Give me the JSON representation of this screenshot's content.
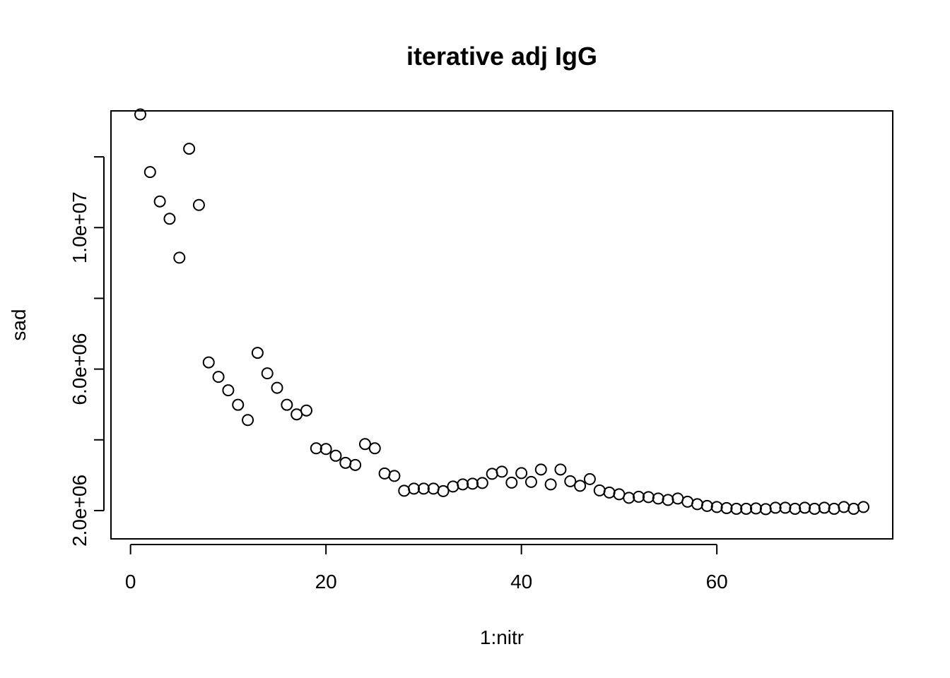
{
  "chart_data": {
    "type": "scatter",
    "title": "iterative adj IgG",
    "xlabel": "1:nitr",
    "ylabel": "sad",
    "xlim": [
      -2,
      78
    ],
    "ylim": [
      1200000,
      13300000
    ],
    "x_ticks": [
      0,
      20,
      40,
      60
    ],
    "x_tick_labels": [
      "0",
      "20",
      "40",
      "60"
    ],
    "y_ticks": [
      2000000,
      4000000,
      6000000,
      8000000,
      10000000,
      12000000
    ],
    "y_tick_labels": [
      "2.0e+06",
      "",
      "6.0e+06",
      "",
      "1.0e+07",
      ""
    ],
    "grid": false,
    "marker": "open-circle",
    "x": [
      1,
      2,
      3,
      4,
      5,
      6,
      7,
      8,
      9,
      10,
      11,
      12,
      13,
      14,
      15,
      16,
      17,
      18,
      19,
      20,
      21,
      22,
      23,
      24,
      25,
      26,
      27,
      28,
      29,
      30,
      31,
      32,
      33,
      34,
      35,
      36,
      37,
      38,
      39,
      40,
      41,
      42,
      43,
      44,
      45,
      46,
      47,
      48,
      49,
      50,
      51,
      52,
      53,
      54,
      55,
      56,
      57,
      58,
      59,
      60,
      61,
      62,
      63,
      64,
      65,
      66,
      67,
      68,
      69,
      70,
      71,
      72,
      73,
      74,
      75
    ],
    "y": [
      13200000,
      11570000,
      10740000,
      10250000,
      9150000,
      12230000,
      10640000,
      6190000,
      5780000,
      5400000,
      4990000,
      4560000,
      6460000,
      5880000,
      5470000,
      4990000,
      4720000,
      4830000,
      3760000,
      3740000,
      3550000,
      3350000,
      3290000,
      3880000,
      3760000,
      3050000,
      2980000,
      2560000,
      2620000,
      2620000,
      2620000,
      2550000,
      2680000,
      2740000,
      2760000,
      2780000,
      3040000,
      3100000,
      2790000,
      3060000,
      2810000,
      3160000,
      2740000,
      3160000,
      2830000,
      2700000,
      2890000,
      2570000,
      2510000,
      2460000,
      2360000,
      2390000,
      2380000,
      2340000,
      2300000,
      2340000,
      2250000,
      2180000,
      2130000,
      2100000,
      2070000,
      2050000,
      2050000,
      2060000,
      2040000,
      2080000,
      2080000,
      2050000,
      2080000,
      2050000,
      2080000,
      2050000,
      2100000,
      2050000,
      2100000
    ]
  }
}
